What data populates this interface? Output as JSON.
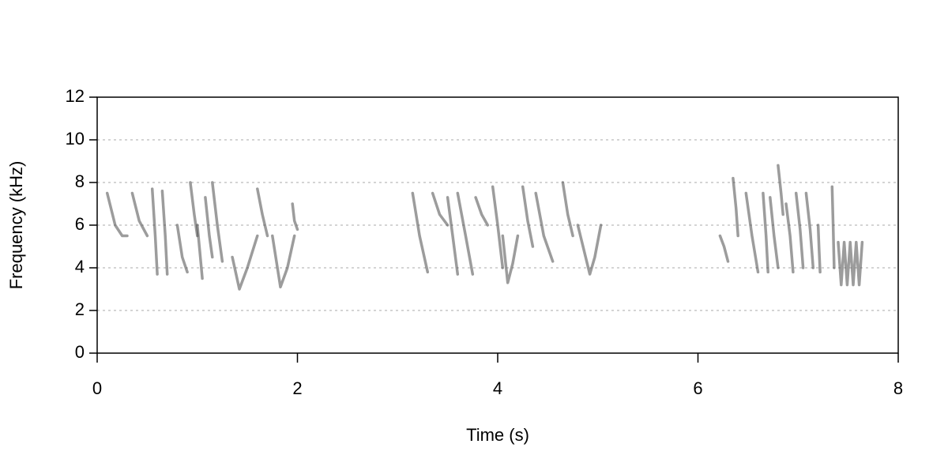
{
  "chart_data": {
    "type": "spectrogram",
    "x_label": "Time (s)",
    "y_label": "Frequency (kHz)",
    "xlim": [
      0,
      8
    ],
    "ylim": [
      0,
      12
    ],
    "xticks": [
      0,
      2,
      4,
      6,
      8
    ],
    "yticks": [
      0,
      2,
      4,
      6,
      8,
      10,
      12
    ],
    "grid": true,
    "color": "#4a4a4a",
    "notes": [
      {
        "x": [
          0.1,
          0.18,
          0.25,
          0.3
        ],
        "y": [
          7.5,
          6.0,
          5.5,
          5.5
        ]
      },
      {
        "x": [
          0.35,
          0.42,
          0.5
        ],
        "y": [
          7.5,
          6.2,
          5.5
        ]
      },
      {
        "x": [
          0.55,
          0.58,
          0.6
        ],
        "y": [
          7.7,
          5.5,
          3.7
        ]
      },
      {
        "x": [
          0.65,
          0.68,
          0.7
        ],
        "y": [
          7.6,
          5.5,
          3.7
        ]
      },
      {
        "x": [
          0.8,
          0.85,
          0.9
        ],
        "y": [
          6.0,
          4.5,
          3.8
        ]
      },
      {
        "x": [
          0.93,
          0.97,
          1.0
        ],
        "y": [
          8.0,
          6.5,
          5.5
        ]
      },
      {
        "x": [
          1.0,
          1.03,
          1.05
        ],
        "y": [
          6.0,
          4.5,
          3.5
        ]
      },
      {
        "x": [
          1.08,
          1.12,
          1.15
        ],
        "y": [
          7.3,
          5.5,
          4.5
        ]
      },
      {
        "x": [
          1.15,
          1.2,
          1.25
        ],
        "y": [
          8.0,
          6.0,
          4.3
        ]
      },
      {
        "x": [
          1.35,
          1.42,
          1.5,
          1.6
        ],
        "y": [
          4.5,
          3.0,
          4.0,
          5.5
        ]
      },
      {
        "x": [
          1.6,
          1.65,
          1.7
        ],
        "y": [
          7.7,
          6.5,
          5.5
        ]
      },
      {
        "x": [
          1.75,
          1.83,
          1.9,
          1.97
        ],
        "y": [
          5.5,
          3.1,
          4.0,
          5.5
        ]
      },
      {
        "x": [
          1.95,
          1.97,
          2.0
        ],
        "y": [
          7.0,
          6.2,
          5.8
        ]
      },
      {
        "x": [
          3.15,
          3.22,
          3.3
        ],
        "y": [
          7.5,
          5.5,
          3.8
        ]
      },
      {
        "x": [
          3.35,
          3.42,
          3.5
        ],
        "y": [
          7.5,
          6.5,
          6.0
        ]
      },
      {
        "x": [
          3.5,
          3.55,
          3.6
        ],
        "y": [
          7.3,
          5.5,
          3.7
        ]
      },
      {
        "x": [
          3.6,
          3.68,
          3.75
        ],
        "y": [
          7.5,
          5.5,
          3.7
        ]
      },
      {
        "x": [
          3.78,
          3.84,
          3.9
        ],
        "y": [
          7.3,
          6.5,
          6.0
        ]
      },
      {
        "x": [
          3.95,
          4.0,
          4.05
        ],
        "y": [
          7.8,
          6.0,
          4.0
        ]
      },
      {
        "x": [
          4.05,
          4.1,
          4.15,
          4.2
        ],
        "y": [
          5.5,
          3.3,
          4.2,
          5.5
        ]
      },
      {
        "x": [
          4.25,
          4.3,
          4.35
        ],
        "y": [
          7.8,
          6.2,
          5.0
        ]
      },
      {
        "x": [
          4.38,
          4.46,
          4.55
        ],
        "y": [
          7.5,
          5.5,
          4.3
        ]
      },
      {
        "x": [
          4.65,
          4.7,
          4.75
        ],
        "y": [
          8.0,
          6.5,
          5.5
        ]
      },
      {
        "x": [
          4.8,
          4.92,
          4.97,
          5.03
        ],
        "y": [
          6.0,
          3.7,
          4.5,
          6.0
        ]
      },
      {
        "x": [
          6.22,
          6.26,
          6.3
        ],
        "y": [
          5.5,
          5.0,
          4.3
        ]
      },
      {
        "x": [
          6.35,
          6.38,
          6.4
        ],
        "y": [
          8.2,
          6.8,
          5.5
        ]
      },
      {
        "x": [
          6.48,
          6.54,
          6.6
        ],
        "y": [
          7.5,
          5.5,
          3.8
        ]
      },
      {
        "x": [
          6.65,
          6.68,
          6.7
        ],
        "y": [
          7.5,
          5.5,
          3.8
        ]
      },
      {
        "x": [
          6.72,
          6.76,
          6.8
        ],
        "y": [
          7.3,
          5.5,
          4.0
        ]
      },
      {
        "x": [
          6.8,
          6.83,
          6.85
        ],
        "y": [
          8.8,
          7.5,
          6.5
        ]
      },
      {
        "x": [
          6.88,
          6.92,
          6.95
        ],
        "y": [
          7.0,
          5.5,
          3.8
        ]
      },
      {
        "x": [
          6.98,
          7.02,
          7.05
        ],
        "y": [
          7.5,
          5.8,
          4.0
        ]
      },
      {
        "x": [
          7.08,
          7.12,
          7.15
        ],
        "y": [
          7.5,
          5.8,
          4.0
        ]
      },
      {
        "x": [
          7.2,
          7.21,
          7.22
        ],
        "y": [
          6.0,
          4.8,
          3.8
        ]
      },
      {
        "x": [
          7.34,
          7.35,
          7.36
        ],
        "y": [
          7.8,
          6.0,
          4.0
        ]
      },
      {
        "x": [
          7.4,
          7.43,
          7.46,
          7.49,
          7.52,
          7.55,
          7.58,
          7.61,
          7.64
        ],
        "y": [
          5.2,
          3.2,
          5.2,
          3.2,
          5.2,
          3.2,
          5.2,
          3.2,
          5.2
        ]
      }
    ]
  }
}
